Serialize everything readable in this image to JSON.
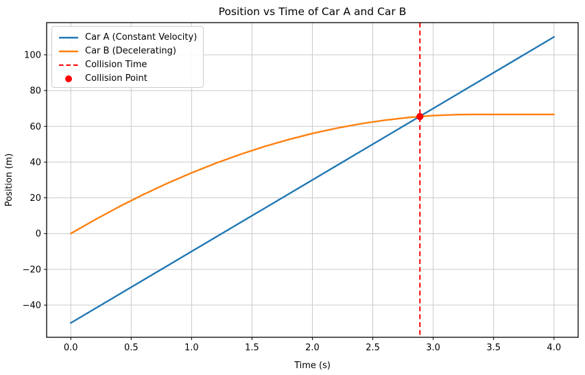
{
  "chart_data": {
    "type": "line",
    "title": "Position vs Time of Car A and Car B",
    "xlabel": "Time (s)",
    "ylabel": "Position (m)",
    "xlim": [
      -0.2,
      4.2
    ],
    "ylim": [
      -58,
      118
    ],
    "xtick_values": [
      0.0,
      0.5,
      1.0,
      1.5,
      2.0,
      2.5,
      3.0,
      3.5,
      4.0
    ],
    "xtick_labels": [
      "0.0",
      "0.5",
      "1.0",
      "1.5",
      "2.0",
      "2.5",
      "3.0",
      "3.5",
      "4.0"
    ],
    "ytick_values": [
      -40,
      -20,
      0,
      20,
      40,
      60,
      80,
      100
    ],
    "ytick_labels": [
      "−40",
      "−20",
      "0",
      "20",
      "40",
      "60",
      "80",
      "100"
    ],
    "grid": true,
    "grid_color": "#c9c9c9",
    "spine_color": "#000000",
    "legend_position": "upper left",
    "series": [
      {
        "name": "Car A (Constant Velocity)",
        "color": "#1f77b4",
        "line_style": "solid",
        "x": [
          0,
          4
        ],
        "y": [
          -50,
          110
        ]
      },
      {
        "name": "Car B (Decelerating)",
        "color": "#ff7f0e",
        "line_style": "solid",
        "x": [
          0,
          0.2,
          0.4,
          0.6,
          0.8,
          1.0,
          1.2,
          1.4,
          1.6,
          1.8,
          2.0,
          2.2,
          2.4,
          2.6,
          2.8,
          3.0,
          3.2,
          3.33,
          3.6,
          4.0
        ],
        "y": [
          0,
          7.76,
          15.04,
          21.84,
          28.16,
          34.0,
          39.36,
          44.24,
          48.64,
          52.56,
          56.0,
          58.96,
          61.44,
          63.44,
          64.96,
          66.0,
          66.56,
          66.67,
          66.67,
          66.67
        ]
      }
    ],
    "collision_time_line": {
      "label": "Collision Time",
      "x": 2.89,
      "color": "#ff0000",
      "line_style": "dashed"
    },
    "collision_point": {
      "label": "Collision Point",
      "x": 2.89,
      "y": 65.47,
      "color": "#ff0000"
    }
  }
}
